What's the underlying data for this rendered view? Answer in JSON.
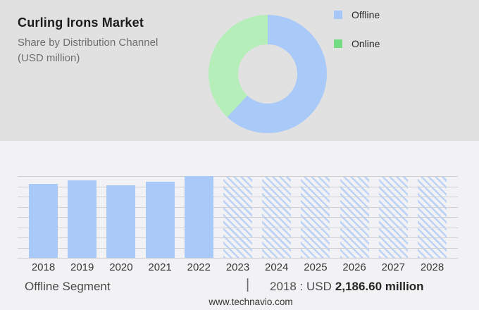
{
  "header": {
    "title": "Curling Irons Market",
    "subtitle_line1": "Share by Distribution Channel",
    "subtitle_line2": "(USD million)"
  },
  "legend": {
    "items": [
      {
        "label": "Offline",
        "color": "#a7c5f6"
      },
      {
        "label": "Online",
        "color": "#74dd84"
      }
    ]
  },
  "chart_data": [
    {
      "type": "pie",
      "subtype": "donut",
      "title": "Share by Distribution Channel (USD million)",
      "start_angle_deg": 0,
      "direction": "clockwise",
      "legend_position": "right",
      "hole_color": "#e1e1e1",
      "slices": [
        {
          "label": "Offline",
          "share_pct": 62,
          "color": "#a9c9f8"
        },
        {
          "label": "Online",
          "share_pct": 38,
          "color": "#b5eeb8"
        }
      ]
    },
    {
      "type": "bar",
      "name": "Offline Segment",
      "categories": [
        "2018",
        "2019",
        "2020",
        "2021",
        "2022",
        "2023",
        "2024",
        "2025",
        "2026",
        "2027",
        "2028"
      ],
      "values": [
        2186.6,
        2290,
        2140,
        2260,
        2420,
        null,
        null,
        null,
        null,
        null,
        null
      ],
      "forecast_years": [
        "2023",
        "2024",
        "2025",
        "2026",
        "2027",
        "2028"
      ],
      "ylim": [
        0,
        2420
      ],
      "grid": "horizontal",
      "gridline_count": 9,
      "bar_color": "#a9c9f8",
      "hatch_color": "#bcd3f7",
      "hatch_direction": "backslash"
    }
  ],
  "footer": {
    "segment_label": "Offline Segment",
    "separator": "|",
    "value_prefix": "2018 : USD",
    "value_bold": "2,186.60 million",
    "website": "www.technavio.com"
  }
}
